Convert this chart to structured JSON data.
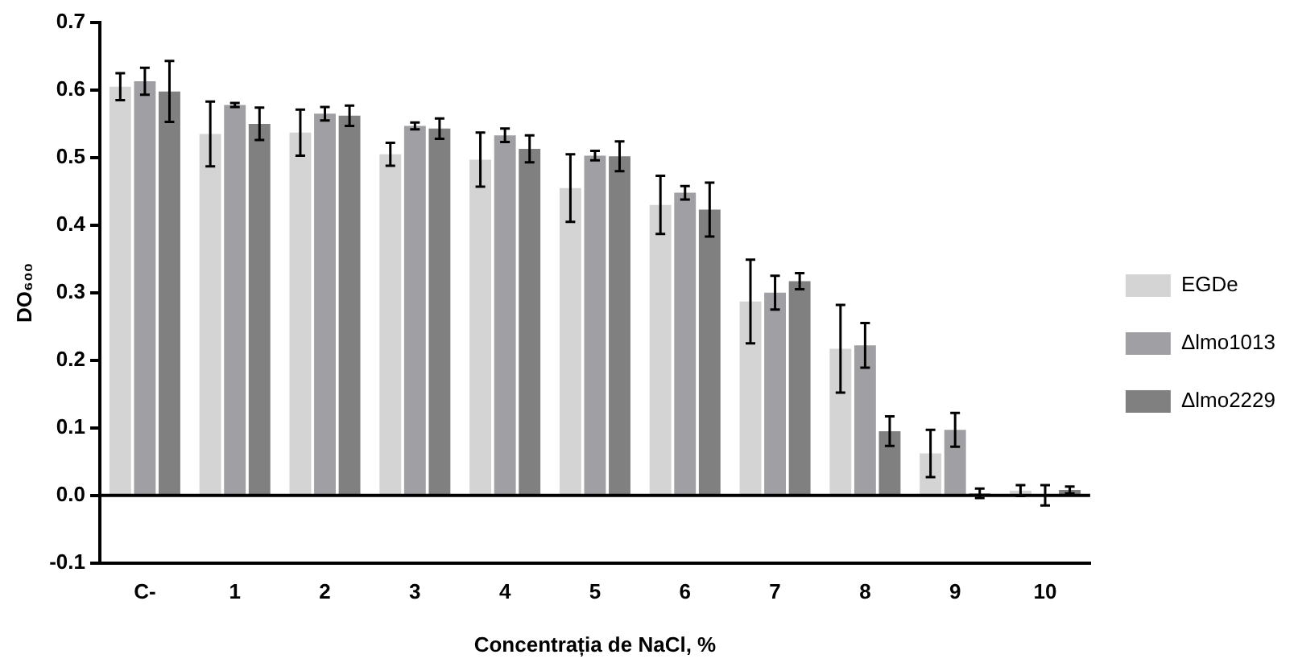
{
  "chart_data": {
    "type": "bar",
    "xlabel": "Concentrația de NaCl, %",
    "ylabel": "DO₆₀₀",
    "categories": [
      "C-",
      "1",
      "2",
      "3",
      "4",
      "5",
      "6",
      "7",
      "8",
      "9",
      "10"
    ],
    "series": [
      {
        "name": "EGDe",
        "color": "#d4d4d4",
        "values": [
          0.605,
          0.535,
          0.537,
          0.505,
          0.497,
          0.455,
          0.43,
          0.287,
          0.217,
          0.062,
          0.007
        ],
        "errors": [
          0.02,
          0.048,
          0.034,
          0.017,
          0.04,
          0.05,
          0.043,
          0.062,
          0.065,
          0.035,
          0.008
        ]
      },
      {
        "name": "Δlmo1013",
        "color": "#a0a0a4",
        "values": [
          0.613,
          0.578,
          0.565,
          0.547,
          0.533,
          0.503,
          0.448,
          0.3,
          0.222,
          0.097,
          0.0
        ],
        "errors": [
          0.02,
          0.003,
          0.01,
          0.005,
          0.01,
          0.007,
          0.01,
          0.025,
          0.033,
          0.025,
          0.015
        ]
      },
      {
        "name": "Δlmo2229",
        "color": "#808080",
        "values": [
          0.598,
          0.55,
          0.562,
          0.543,
          0.513,
          0.502,
          0.423,
          0.317,
          0.095,
          0.003,
          0.008
        ],
        "errors": [
          0.045,
          0.024,
          0.015,
          0.015,
          0.02,
          0.022,
          0.04,
          0.012,
          0.022,
          0.007,
          0.005
        ]
      }
    ],
    "ylim": [
      -0.1,
      0.7
    ],
    "yticks": [
      -0.1,
      {
        "value": 0,
        "label": "0.0"
      },
      0.1,
      0.2,
      0.3,
      0.4,
      0.5,
      0.6,
      0.7
    ],
    "grid": false,
    "ref_lines": [
      {
        "axis": "y",
        "value": 0,
        "color": "#000000"
      }
    ],
    "legend": "right"
  }
}
